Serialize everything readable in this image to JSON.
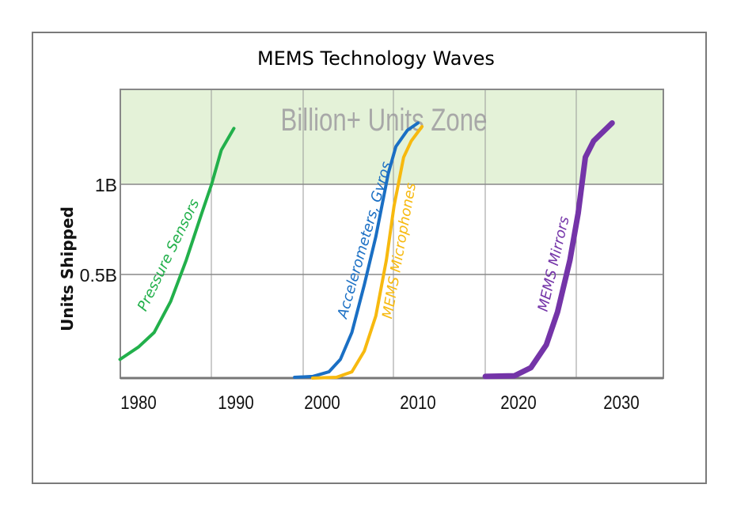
{
  "chart_data": {
    "type": "line",
    "title": "MEMS Technology Waves",
    "xlabel": "",
    "ylabel": "Units Shipped",
    "x_ticks": [
      1980,
      1990,
      2000,
      2010,
      2020,
      2030
    ],
    "y_ticks": [
      {
        "value": 0.5,
        "label": "0.5B"
      },
      {
        "value": 1,
        "label": "1B"
      }
    ],
    "xlim": [
      1978,
      2033
    ],
    "ylim": [
      0,
      1.5
    ],
    "grid": true,
    "zone": {
      "label": "Billion+ Units Zone",
      "from": 1,
      "to": 1.5,
      "color": "#e4f2d8"
    },
    "series": [
      {
        "name": "Pressure Sensors",
        "color": "#22b04b",
        "x": [
          1978.1,
          1980,
          1981.6,
          1983.3,
          1984.9,
          1986.5,
          1987.5,
          1988.5,
          1989.8
        ],
        "y": [
          0.09,
          0.15,
          0.22,
          0.37,
          0.58,
          0.84,
          1.0,
          1.19,
          1.31
        ]
      },
      {
        "name": "Accelerometers, Gyros",
        "color": "#1a6fc4",
        "x": [
          1996.8,
          1998.9,
          2000.7,
          2001.9,
          2003.1,
          2004.4,
          2005.6,
          2006.9,
          2007.7,
          2008.9,
          2010
        ],
        "y": [
          0.004,
          0.008,
          0.03,
          0.09,
          0.22,
          0.45,
          0.71,
          1.06,
          1.21,
          1.3,
          1.34
        ]
      },
      {
        "name": "MEMS Microphones",
        "color": "#f7b90f",
        "x": [
          1998.9,
          2001.5,
          2003.1,
          2004.4,
          2005.6,
          2006.7,
          2007.5,
          2008.5,
          2009.3,
          2010.4
        ],
        "y": [
          0,
          0.004,
          0.03,
          0.13,
          0.3,
          0.58,
          0.88,
          1.15,
          1.24,
          1.32
        ]
      },
      {
        "name": "MEMS Mirrors",
        "color": "#7434a8",
        "x": [
          2016.7,
          2019.6,
          2021.2,
          2022.7,
          2023.8,
          2025,
          2025.8,
          2026.5,
          2027.3,
          2029.1
        ],
        "y": [
          0.008,
          0.011,
          0.05,
          0.16,
          0.32,
          0.58,
          0.84,
          1.15,
          1.24,
          1.34
        ]
      }
    ]
  }
}
